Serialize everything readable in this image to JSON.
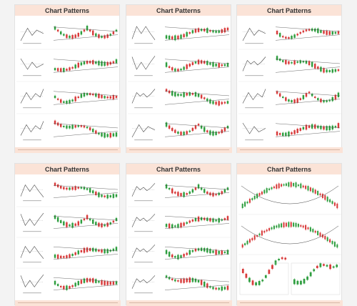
{
  "cards": [
    {
      "title": "Chart Patterns"
    },
    {
      "title": "Chart Patterns"
    },
    {
      "title": "Chart Patterns"
    },
    {
      "title": "Chart Patterns"
    },
    {
      "title": "Chart Patterns"
    },
    {
      "title": "Chart Patterns"
    }
  ],
  "colors": {
    "bull": "#2e9e3f",
    "bear": "#d83a3a",
    "header": "#fbe3d7",
    "line": "#444444"
  }
}
